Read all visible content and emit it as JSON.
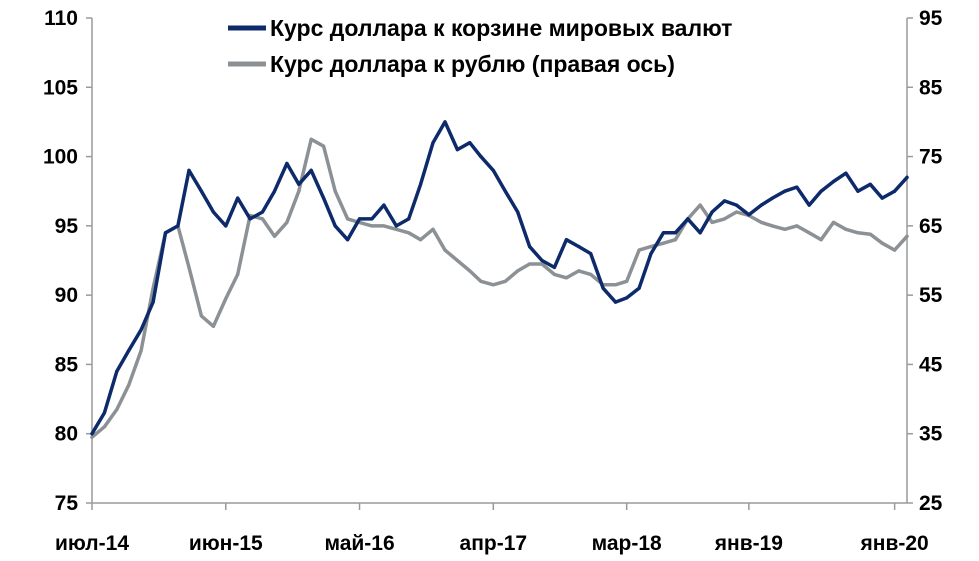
{
  "chart_data": {
    "type": "line",
    "title": "",
    "xlabel": "",
    "ylabel": "",
    "x_tick_labels": [
      "июл-14",
      "июн-15",
      "май-16",
      "апр-17",
      "мар-18",
      "янв-19",
      "янв-20"
    ],
    "x_tick_dates": [
      "2014-07",
      "2015-06",
      "2016-05",
      "2017-04",
      "2018-03",
      "2019-01",
      "2020-01"
    ],
    "y_left": {
      "min": 75,
      "max": 110,
      "ticks": [
        "75",
        "80",
        "85",
        "90",
        "95",
        "100",
        "105",
        "110"
      ]
    },
    "y_right": {
      "min": 25,
      "max": 95,
      "ticks": [
        "25",
        "35",
        "45",
        "55",
        "65",
        "75",
        "85",
        "95"
      ]
    },
    "grid": false,
    "legend_position": "top-right",
    "series": [
      {
        "name": "Курс доллара к корзине мировых валют",
        "axis": "left",
        "color": "#0d2a6b",
        "points": [
          [
            "2014-07",
            80.0
          ],
          [
            "2014-08",
            81.5
          ],
          [
            "2014-09",
            84.5
          ],
          [
            "2014-10",
            86.0
          ],
          [
            "2014-11",
            87.5
          ],
          [
            "2014-12",
            89.5
          ],
          [
            "2015-01",
            94.5
          ],
          [
            "2015-02",
            95.0
          ],
          [
            "2015-03",
            99.0
          ],
          [
            "2015-04",
            97.5
          ],
          [
            "2015-05",
            96.0
          ],
          [
            "2015-06",
            95.0
          ],
          [
            "2015-07",
            97.0
          ],
          [
            "2015-08",
            95.5
          ],
          [
            "2015-09",
            96.0
          ],
          [
            "2015-10",
            97.5
          ],
          [
            "2015-11",
            99.5
          ],
          [
            "2015-12",
            98.0
          ],
          [
            "2016-01",
            99.0
          ],
          [
            "2016-02",
            97.0
          ],
          [
            "2016-03",
            95.0
          ],
          [
            "2016-04",
            94.0
          ],
          [
            "2016-05",
            95.5
          ],
          [
            "2016-06",
            95.5
          ],
          [
            "2016-07",
            96.5
          ],
          [
            "2016-08",
            95.0
          ],
          [
            "2016-09",
            95.5
          ],
          [
            "2016-10",
            98.0
          ],
          [
            "2016-11",
            101.0
          ],
          [
            "2016-12",
            102.5
          ],
          [
            "2017-01",
            100.5
          ],
          [
            "2017-02",
            101.0
          ],
          [
            "2017-03",
            100.0
          ],
          [
            "2017-04",
            99.0
          ],
          [
            "2017-05",
            97.5
          ],
          [
            "2017-06",
            96.0
          ],
          [
            "2017-07",
            93.5
          ],
          [
            "2017-08",
            92.5
          ],
          [
            "2017-09",
            92.0
          ],
          [
            "2017-10",
            94.0
          ],
          [
            "2017-11",
            93.5
          ],
          [
            "2017-12",
            93.0
          ],
          [
            "2018-01",
            90.5
          ],
          [
            "2018-02",
            89.5
          ],
          [
            "2018-03",
            89.8
          ],
          [
            "2018-04",
            90.5
          ],
          [
            "2018-05",
            93.0
          ],
          [
            "2018-06",
            94.5
          ],
          [
            "2018-07",
            94.5
          ],
          [
            "2018-08",
            95.5
          ],
          [
            "2018-09",
            94.5
          ],
          [
            "2018-10",
            96.0
          ],
          [
            "2018-11",
            96.8
          ],
          [
            "2018-12",
            96.5
          ],
          [
            "2019-01",
            95.8
          ],
          [
            "2019-02",
            96.5
          ],
          [
            "2019-03",
            97.0
          ],
          [
            "2019-04",
            97.5
          ],
          [
            "2019-05",
            97.8
          ],
          [
            "2019-06",
            96.5
          ],
          [
            "2019-07",
            97.5
          ],
          [
            "2019-08",
            98.2
          ],
          [
            "2019-09",
            98.8
          ],
          [
            "2019-10",
            97.5
          ],
          [
            "2019-11",
            98.0
          ],
          [
            "2019-12",
            97.0
          ],
          [
            "2020-01",
            97.5
          ],
          [
            "2020-02",
            98.5
          ]
        ]
      },
      {
        "name": "Курс доллара к рублю (правая ось)",
        "axis": "right",
        "color": "#8c9196",
        "points": [
          [
            "2014-07",
            34.5
          ],
          [
            "2014-08",
            36.0
          ],
          [
            "2014-09",
            38.5
          ],
          [
            "2014-10",
            42.0
          ],
          [
            "2014-11",
            47.0
          ],
          [
            "2014-12",
            56.0
          ],
          [
            "2015-01",
            64.0
          ],
          [
            "2015-02",
            65.0
          ],
          [
            "2015-03",
            59.0
          ],
          [
            "2015-04",
            52.0
          ],
          [
            "2015-05",
            50.5
          ],
          [
            "2015-06",
            54.5
          ],
          [
            "2015-07",
            58.0
          ],
          [
            "2015-08",
            66.5
          ],
          [
            "2015-09",
            66.0
          ],
          [
            "2015-10",
            63.5
          ],
          [
            "2015-11",
            65.5
          ],
          [
            "2015-12",
            70.0
          ],
          [
            "2016-01",
            77.5
          ],
          [
            "2016-02",
            76.5
          ],
          [
            "2016-03",
            70.0
          ],
          [
            "2016-04",
            66.0
          ],
          [
            "2016-05",
            65.5
          ],
          [
            "2016-06",
            65.0
          ],
          [
            "2016-07",
            65.0
          ],
          [
            "2016-08",
            64.5
          ],
          [
            "2016-09",
            64.0
          ],
          [
            "2016-10",
            63.0
          ],
          [
            "2016-11",
            64.5
          ],
          [
            "2016-12",
            61.5
          ],
          [
            "2017-01",
            60.0
          ],
          [
            "2017-02",
            58.5
          ],
          [
            "2017-03",
            57.0
          ],
          [
            "2017-04",
            56.5
          ],
          [
            "2017-05",
            57.0
          ],
          [
            "2017-06",
            58.5
          ],
          [
            "2017-07",
            59.5
          ],
          [
            "2017-08",
            59.5
          ],
          [
            "2017-09",
            58.0
          ],
          [
            "2017-10",
            57.5
          ],
          [
            "2017-11",
            58.5
          ],
          [
            "2017-12",
            58.0
          ],
          [
            "2018-01",
            56.5
          ],
          [
            "2018-02",
            56.5
          ],
          [
            "2018-03",
            57.0
          ],
          [
            "2018-04",
            61.5
          ],
          [
            "2018-05",
            62.0
          ],
          [
            "2018-06",
            62.5
          ],
          [
            "2018-07",
            63.0
          ],
          [
            "2018-08",
            66.0
          ],
          [
            "2018-09",
            68.0
          ],
          [
            "2018-10",
            65.5
          ],
          [
            "2018-11",
            66.0
          ],
          [
            "2018-12",
            67.0
          ],
          [
            "2019-01",
            66.5
          ],
          [
            "2019-02",
            65.5
          ],
          [
            "2019-03",
            65.0
          ],
          [
            "2019-04",
            64.5
          ],
          [
            "2019-05",
            65.0
          ],
          [
            "2019-06",
            64.0
          ],
          [
            "2019-07",
            63.0
          ],
          [
            "2019-08",
            65.5
          ],
          [
            "2019-09",
            64.5
          ],
          [
            "2019-10",
            64.0
          ],
          [
            "2019-11",
            63.8
          ],
          [
            "2019-12",
            62.5
          ],
          [
            "2020-01",
            61.5
          ],
          [
            "2020-02",
            63.5
          ]
        ]
      }
    ]
  }
}
